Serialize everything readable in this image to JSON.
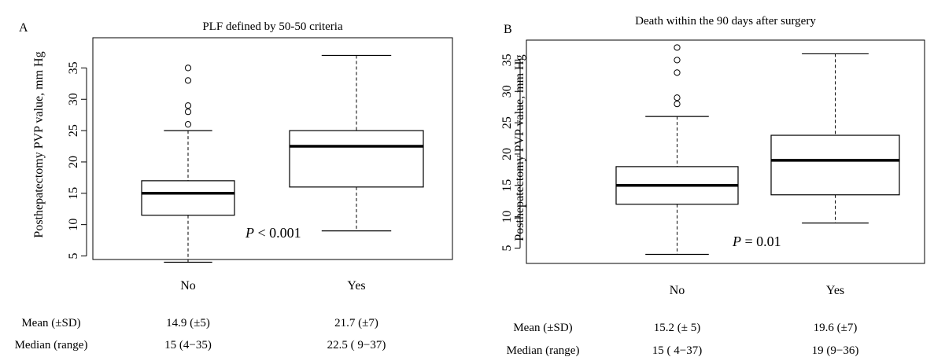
{
  "chart_data": [
    {
      "type": "box",
      "panel": "A",
      "title": "PLF defined by  50-50  criteria",
      "ylabel": "Posthepatectomy PVP value, mm Hg",
      "xlabel": "",
      "ylim": [
        3,
        38
      ],
      "yticks": [
        "5",
        "10",
        "15",
        "20",
        "25",
        "30",
        "35"
      ],
      "categories": [
        "No",
        "Yes"
      ],
      "boxes": [
        {
          "category": "No",
          "whisker_low": 4,
          "q1": 11.5,
          "median": 15,
          "q3": 17,
          "whisker_high": 25,
          "outliers": [
            26,
            28,
            29,
            33,
            35
          ]
        },
        {
          "category": "Yes",
          "whisker_low": 9,
          "q1": 16,
          "median": 22.5,
          "q3": 25,
          "whisker_high": 37,
          "outliers": []
        }
      ],
      "p_label": "P",
      "p_text": " < 0.001",
      "stats": {
        "mean_label": "Mean (±SD)",
        "median_label": "Median (range)",
        "mean_values": [
          "14.9 (±5)",
          "21.7 (±7)"
        ],
        "median_values": [
          "15 (4−35)",
          "22.5 ( 9−37)"
        ]
      }
    },
    {
      "type": "box",
      "panel": "B",
      "title": "Death within the 90 days  after surgery",
      "ylabel": "Posthepatectomy PVP value, mm Hg",
      "xlabel": "",
      "ylim": [
        3,
        38
      ],
      "yticks": [
        "5",
        "10",
        "15",
        "20",
        "25",
        "30",
        "35"
      ],
      "categories": [
        "No",
        "Yes"
      ],
      "boxes": [
        {
          "category": "No",
          "whisker_low": 4,
          "q1": 12,
          "median": 15,
          "q3": 18,
          "whisker_high": 26,
          "outliers": [
            28,
            29,
            33,
            35,
            37
          ]
        },
        {
          "category": "Yes",
          "whisker_low": 9,
          "q1": 13.5,
          "median": 19,
          "q3": 23,
          "whisker_high": 36,
          "outliers": []
        }
      ],
      "p_label": "P",
      "p_text": " = 0.01",
      "stats": {
        "mean_label": "Mean (±SD)",
        "median_label": "Median (range)",
        "mean_values": [
          "15.2 (± 5)",
          "19.6 (±7)"
        ],
        "median_values": [
          "15 ( 4−37)",
          "19 (9−36)"
        ]
      }
    }
  ]
}
